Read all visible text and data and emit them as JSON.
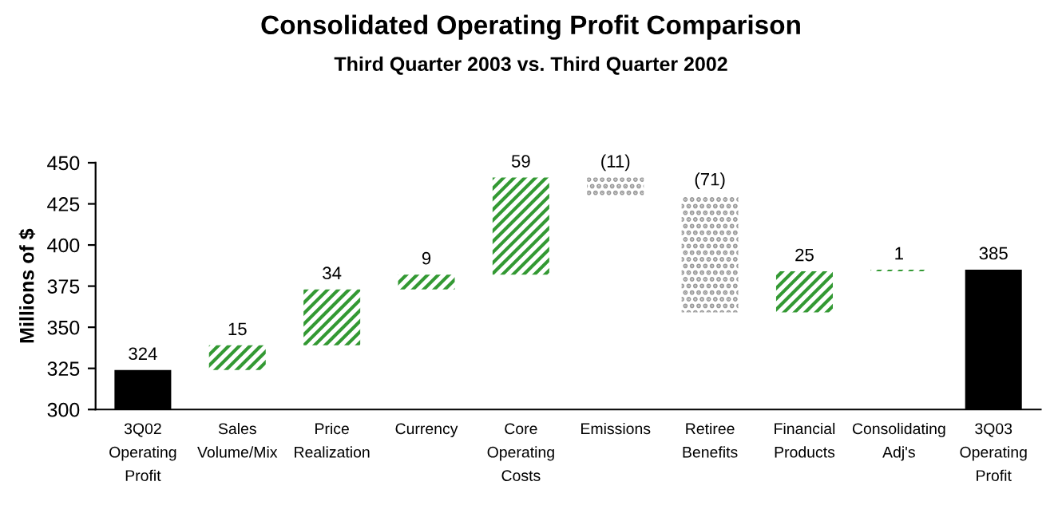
{
  "chart_data": {
    "type": "bar",
    "title": "Consolidated Operating Profit Comparison",
    "subtitle": "Third Quarter 2003 vs. Third Quarter 2002",
    "ylabel": "Millions of $",
    "categories": [
      "3Q02\nOperating\nProfit",
      "Sales\nVolume/Mix",
      "Price\nRealization",
      "Currency",
      "Core\nOperating\nCosts",
      "Emissions",
      "Retiree\nBenefits",
      "Financial\nProducts",
      "Consolidating\nAdj's",
      "3Q03\nOperating\nProfit"
    ],
    "values": [
      324,
      15,
      34,
      9,
      59,
      -11,
      -71,
      25,
      1,
      385
    ],
    "base": [
      null,
      324,
      339,
      373,
      382,
      441,
      430,
      359,
      384,
      null
    ],
    "value_labels": [
      "324",
      "15",
      "34",
      "9",
      "59",
      "(11)",
      "(71)",
      "25",
      "1",
      "385"
    ],
    "colors": [
      "#000000",
      "#339933",
      "#339933",
      "#339933",
      "#339933",
      "#999999",
      "#999999",
      "#339933",
      "#339933",
      "#000000"
    ],
    "ylim": [
      300,
      450
    ],
    "yticks": [
      300,
      325,
      350,
      375,
      400,
      425,
      450
    ],
    "grid": false,
    "legend": false
  }
}
